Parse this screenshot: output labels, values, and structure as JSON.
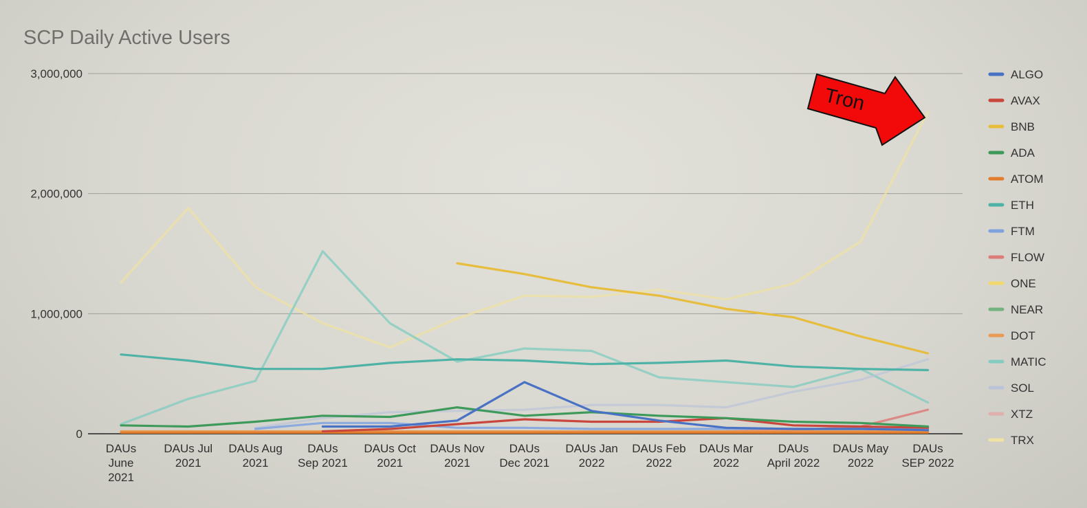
{
  "chart_data": {
    "type": "line",
    "title": "SCP Daily Active Users",
    "xlabel": "",
    "ylabel": "",
    "ylim": [
      0,
      3000000
    ],
    "yticks": [
      0,
      1000000,
      2000000,
      3000000
    ],
    "ytick_labels": [
      "0",
      "1,000,000",
      "2,000,000",
      "3,000,000"
    ],
    "grid": true,
    "legend_position": "right",
    "categories": [
      "DAUs June 2021",
      "DAUs Jul 2021",
      "DAUs Aug 2021",
      "DAUs Sep 2021",
      "DAUs Oct 2021",
      "DAUs Nov 2021",
      "DAUs Dec 2021",
      "DAUs Jan 2022",
      "DAUs Feb 2022",
      "DAUs Mar 2022",
      "DAUs April 2022",
      "DAUs May 2022",
      "DAUs SEP 2022"
    ],
    "category_lines": [
      [
        "DAUs",
        "June",
        "2021"
      ],
      [
        "DAUs Jul",
        "2021"
      ],
      [
        "DAUs Aug",
        "2021"
      ],
      [
        "DAUs",
        "Sep 2021"
      ],
      [
        "DAUs Oct",
        "2021"
      ],
      [
        "DAUs Nov",
        "2021"
      ],
      [
        "DAUs",
        "Dec 2021"
      ],
      [
        "DAUs Jan",
        "2022"
      ],
      [
        "DAUs Feb",
        "2022"
      ],
      [
        "DAUs Mar",
        "2022"
      ],
      [
        "DAUs",
        "April 2022"
      ],
      [
        "DAUs May",
        "2022"
      ],
      [
        "DAUs",
        "SEP 2022"
      ]
    ],
    "series": [
      {
        "name": "ALGO",
        "color": "#4a72c4",
        "values": [
          null,
          null,
          null,
          60000,
          60000,
          110000,
          430000,
          190000,
          110000,
          50000,
          40000,
          40000,
          30000
        ]
      },
      {
        "name": "AVAX",
        "color": "#c9463d",
        "values": [
          null,
          null,
          null,
          20000,
          40000,
          80000,
          120000,
          100000,
          100000,
          130000,
          70000,
          60000,
          50000
        ]
      },
      {
        "name": "BNB",
        "color": "#e6bd3c",
        "values": [
          null,
          null,
          null,
          null,
          null,
          1420000,
          1330000,
          1220000,
          1150000,
          1040000,
          970000,
          810000,
          670000
        ]
      },
      {
        "name": "ADA",
        "color": "#3e9a5a",
        "values": [
          70000,
          60000,
          100000,
          150000,
          140000,
          220000,
          150000,
          180000,
          150000,
          130000,
          100000,
          90000,
          60000
        ]
      },
      {
        "name": "ATOM",
        "color": "#e27d2e",
        "values": [
          10000,
          10000,
          10000,
          10000,
          10000,
          10000,
          10000,
          10000,
          10000,
          10000,
          10000,
          10000,
          10000
        ]
      },
      {
        "name": "ETH",
        "color": "#4eb3a6",
        "values": [
          660000,
          610000,
          540000,
          540000,
          590000,
          620000,
          610000,
          580000,
          590000,
          610000,
          560000,
          540000,
          530000
        ]
      },
      {
        "name": "FTM",
        "color": "#7ea2e0",
        "values": [
          null,
          null,
          40000,
          90000,
          90000,
          50000,
          50000,
          40000,
          40000,
          40000,
          40000,
          40000,
          40000
        ]
      },
      {
        "name": "FLOW",
        "color": "#dd7d7a",
        "values": [
          null,
          null,
          null,
          null,
          null,
          null,
          null,
          null,
          null,
          20000,
          30000,
          60000,
          200000
        ]
      },
      {
        "name": "ONE",
        "color": "#f1d86a",
        "values": [
          null,
          null,
          null,
          null,
          null,
          null,
          null,
          null,
          null,
          null,
          null,
          null,
          null
        ]
      },
      {
        "name": "NEAR",
        "color": "#74b37f",
        "values": [
          null,
          null,
          null,
          null,
          null,
          null,
          null,
          null,
          null,
          null,
          null,
          null,
          null
        ]
      },
      {
        "name": "DOT",
        "color": "#e99a55",
        "values": [
          20000,
          20000,
          20000,
          20000,
          20000,
          20000,
          20000,
          20000,
          20000,
          20000,
          20000,
          20000,
          20000
        ]
      },
      {
        "name": "MATIC",
        "color": "#84ccc0",
        "values": [
          80000,
          290000,
          440000,
          1520000,
          920000,
          600000,
          710000,
          690000,
          470000,
          430000,
          390000,
          540000,
          260000
        ]
      },
      {
        "name": "SOL",
        "color": "#bac3d8",
        "values": [
          null,
          null,
          50000,
          130000,
          180000,
          190000,
          200000,
          240000,
          240000,
          220000,
          350000,
          450000,
          620000
        ]
      },
      {
        "name": "XTZ",
        "color": "#dfb0ac",
        "values": [
          null,
          null,
          null,
          null,
          null,
          null,
          null,
          null,
          null,
          null,
          null,
          null,
          null
        ]
      },
      {
        "name": "TRX",
        "color": "#efe2a2",
        "values": [
          1260000,
          1880000,
          1220000,
          920000,
          720000,
          960000,
          1150000,
          1140000,
          1200000,
          1120000,
          1250000,
          1600000,
          2680000
        ]
      }
    ],
    "annotations": [
      {
        "text": "Tron",
        "shape": "red arrow",
        "points_to": "TRX at DAUs SEP 2022"
      }
    ]
  },
  "colors": {
    "arrow_fill": "#f20a0a",
    "arrow_stroke": "#111111"
  }
}
